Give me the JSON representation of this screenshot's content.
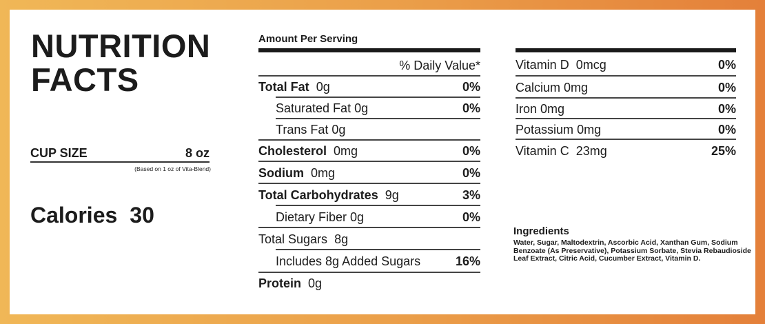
{
  "title_line1": "NUTRITION",
  "title_line2": "FACTS",
  "cup_size": {
    "label": "CUP SIZE",
    "value": "8 oz",
    "note": "(Based on 1 oz of Vita-Blend)"
  },
  "calories": {
    "label": "Calories",
    "value": "30"
  },
  "amount_per_serving": "Amount Per Serving",
  "daily_value_header": "% Daily Value*",
  "nutrients": [
    {
      "name": "Total Fat",
      "amount": "0g",
      "dv": "0%"
    },
    {
      "name": "Saturated Fat",
      "amount": "0g",
      "dv": "0%"
    },
    {
      "name": "Trans Fat",
      "amount": "0g",
      "dv": ""
    },
    {
      "name": "Cholesterol",
      "amount": "0mg",
      "dv": "0%"
    },
    {
      "name": "Sodium",
      "amount": "0mg",
      "dv": "0%"
    },
    {
      "name": "Total Carbohydrates",
      "amount": "9g",
      "dv": "3%"
    },
    {
      "name": "Dietary Fiber",
      "amount": "0g",
      "dv": "0%"
    },
    {
      "name": "Total Sugars",
      "amount": "8g",
      "dv": ""
    },
    {
      "name": "Includes 8g Added Sugars",
      "amount": "",
      "dv": "16%"
    },
    {
      "name": "Protein",
      "amount": "0g",
      "dv": ""
    }
  ],
  "vitamins": [
    {
      "name": "Vitamin D",
      "amount": "0mcg",
      "dv": "0%"
    },
    {
      "name": "Calcium",
      "amount": "0mg",
      "dv": "0%"
    },
    {
      "name": "Iron",
      "amount": "0mg",
      "dv": "0%"
    },
    {
      "name": "Potassium",
      "amount": "0mg",
      "dv": "0%"
    },
    {
      "name": "Vitamin C",
      "amount": "23mg",
      "dv": "25%"
    }
  ],
  "ingredients": {
    "heading": "Ingredients",
    "text": "Water, Sugar, Maltodextrin, Ascorbic Acid, Xanthan Gum, Sodium Benzoate (As Preservative), Potassium Sorbate, Stevia Rebaudioside Leaf Extract, Citric Acid, Cucumber Extract, Vitamin D."
  },
  "colors": {
    "border_left": "#f0b757",
    "border_right": "#e4803a",
    "text": "#1c1c1c"
  }
}
